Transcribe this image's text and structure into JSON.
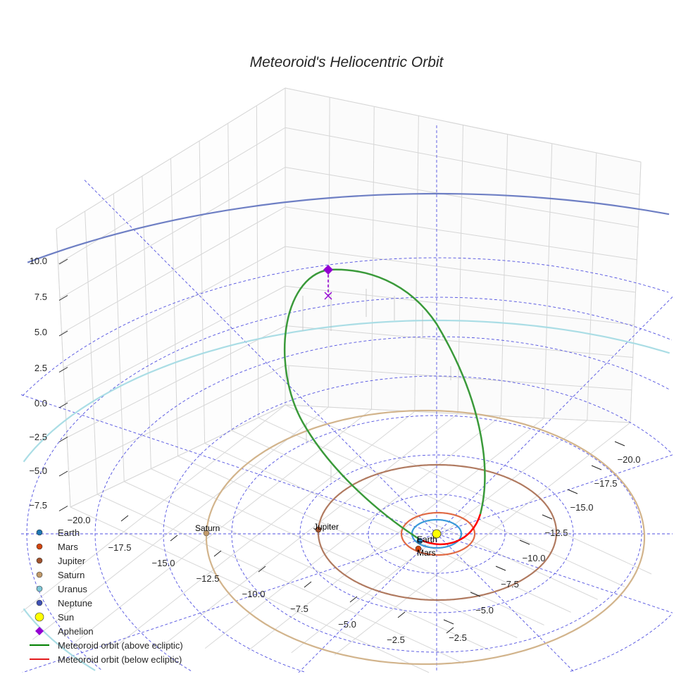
{
  "chart_data": {
    "type": "scatter",
    "projection": "3d",
    "title": "Meteoroid's Heliocentric Orbit",
    "x_ticks": [
      "−20.0",
      "−17.5",
      "−15.0",
      "−12.5",
      "−10.0",
      "−7.5",
      "−5.0",
      "−2.5"
    ],
    "y_ticks": [
      "−20.0",
      "−17.5",
      "−15.0",
      "−12.5",
      "−10.0",
      "−7.5",
      "−5.0",
      "−2.5"
    ],
    "z_ticks": [
      "10.0",
      "7.5",
      "5.0",
      "2.5",
      "0.0",
      "−2.5",
      "−5.0",
      "−7.5"
    ],
    "planet_labels": {
      "saturn": "Saturn",
      "jupiter": "Jupiter",
      "earth": "Earth",
      "mars": "Mars"
    },
    "legend": [
      {
        "label": "Earth",
        "color": "#1f77b4",
        "marker": "circle"
      },
      {
        "label": "Mars",
        "color": "#d2450f",
        "marker": "circle"
      },
      {
        "label": "Jupiter",
        "color": "#a0522d",
        "marker": "circle"
      },
      {
        "label": "Saturn",
        "color": "#c19a6b",
        "marker": "circle"
      },
      {
        "label": "Uranus",
        "color": "#7fc8d8",
        "marker": "circle"
      },
      {
        "label": "Neptune",
        "color": "#3f51b5",
        "marker": "circle"
      },
      {
        "label": "Sun",
        "color": "#ffff00",
        "marker": "circle"
      },
      {
        "label": "Aphelion",
        "color": "#9400d3",
        "marker": "diamond"
      },
      {
        "label": "Meteoroid orbit (above ecliptic)",
        "color": "#008000",
        "marker": "line"
      },
      {
        "label": "Meteoroid orbit (below ecliptic)",
        "color": "#e41a1c",
        "marker": "line"
      }
    ],
    "orbit_colors": {
      "earth": "#3a9ad9",
      "mars": "#e06a45",
      "jupiter": "#b07a60",
      "saturn": "#d2b48c",
      "uranus": "#aadde5",
      "neptune": "#6e7fc4",
      "above": "#3a9a3a",
      "below": "#ff0000",
      "grid": "#5050e0"
    }
  }
}
